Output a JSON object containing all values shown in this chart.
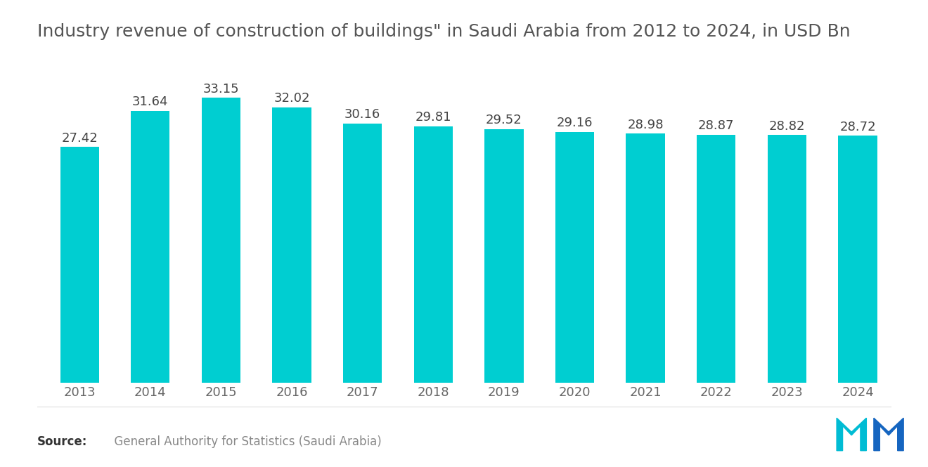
{
  "title": "Industry revenue of construction of buildings\" in Saudi Arabia from 2012 to 2024, in USD Bn",
  "years": [
    2013,
    2014,
    2015,
    2016,
    2017,
    2018,
    2019,
    2020,
    2021,
    2022,
    2023,
    2024
  ],
  "values": [
    27.42,
    31.64,
    33.15,
    32.02,
    30.16,
    29.81,
    29.52,
    29.16,
    28.98,
    28.87,
    28.82,
    28.72
  ],
  "bar_color": "#00CED1",
  "background_color": "#ffffff",
  "title_color": "#555555",
  "label_color": "#444444",
  "tick_color": "#666666",
  "source_bold": "Source:",
  "source_text": "  General Authority for Statistics (Saudi Arabia)",
  "ylim": [
    0,
    38
  ],
  "bar_width": 0.55,
  "title_fontsize": 18,
  "label_fontsize": 13,
  "tick_fontsize": 13,
  "source_fontsize": 12
}
